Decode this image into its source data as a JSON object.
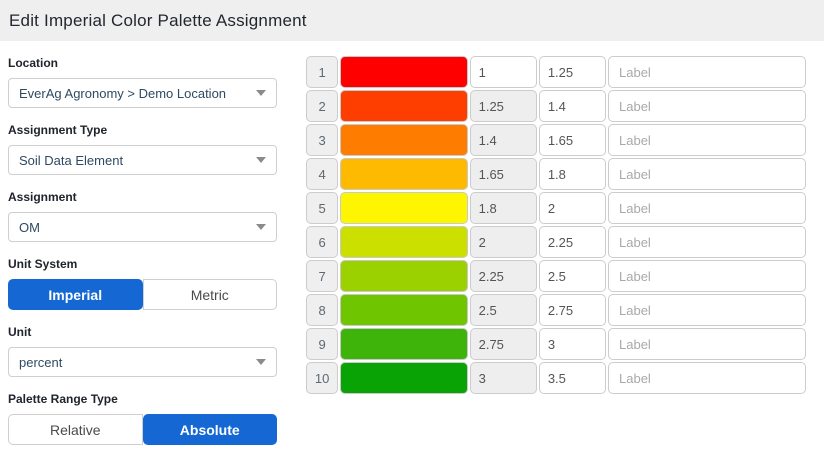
{
  "header": {
    "title": "Edit Imperial Color Palette Assignment"
  },
  "form": {
    "location": {
      "label": "Location",
      "value": "EverAg Agronomy > Demo Location"
    },
    "assignment_type": {
      "label": "Assignment Type",
      "value": "Soil Data Element"
    },
    "assignment": {
      "label": "Assignment",
      "value": "OM"
    },
    "unit_system": {
      "label": "Unit System",
      "options": [
        "Imperial",
        "Metric"
      ],
      "selected": "Imperial"
    },
    "unit": {
      "label": "Unit",
      "value": "percent"
    },
    "palette_range_type": {
      "label": "Palette Range Type",
      "options": [
        "Relative",
        "Absolute"
      ],
      "selected": "Absolute"
    }
  },
  "palette_table": {
    "label_placeholder": "Label",
    "rows": [
      {
        "index": "1",
        "color": "#FE0000",
        "min": "1",
        "max": "1.25",
        "min_editable": true
      },
      {
        "index": "2",
        "color": "#FE3E00",
        "min": "1.25",
        "max": "1.4",
        "min_editable": false
      },
      {
        "index": "3",
        "color": "#FE7D00",
        "min": "1.4",
        "max": "1.65",
        "min_editable": false
      },
      {
        "index": "4",
        "color": "#FDBA00",
        "min": "1.65",
        "max": "1.8",
        "min_editable": false
      },
      {
        "index": "5",
        "color": "#FEF600",
        "min": "1.8",
        "max": "2",
        "min_editable": false
      },
      {
        "index": "6",
        "color": "#CCE000",
        "min": "2",
        "max": "2.25",
        "min_editable": false
      },
      {
        "index": "7",
        "color": "#9CD100",
        "min": "2.25",
        "max": "2.5",
        "min_editable": false
      },
      {
        "index": "8",
        "color": "#6FC600",
        "min": "2.5",
        "max": "2.75",
        "min_editable": false
      },
      {
        "index": "9",
        "color": "#3EB309",
        "min": "2.75",
        "max": "3",
        "min_editable": false
      },
      {
        "index": "10",
        "color": "#0AA305",
        "min": "3",
        "max": "3.5",
        "min_editable": false
      }
    ]
  },
  "colors": {
    "accent_blue": "#1568D3",
    "header_bg": "#EFEFEF",
    "row_border": "#CCCCCC",
    "readonly_bg": "#EEEEEE"
  }
}
